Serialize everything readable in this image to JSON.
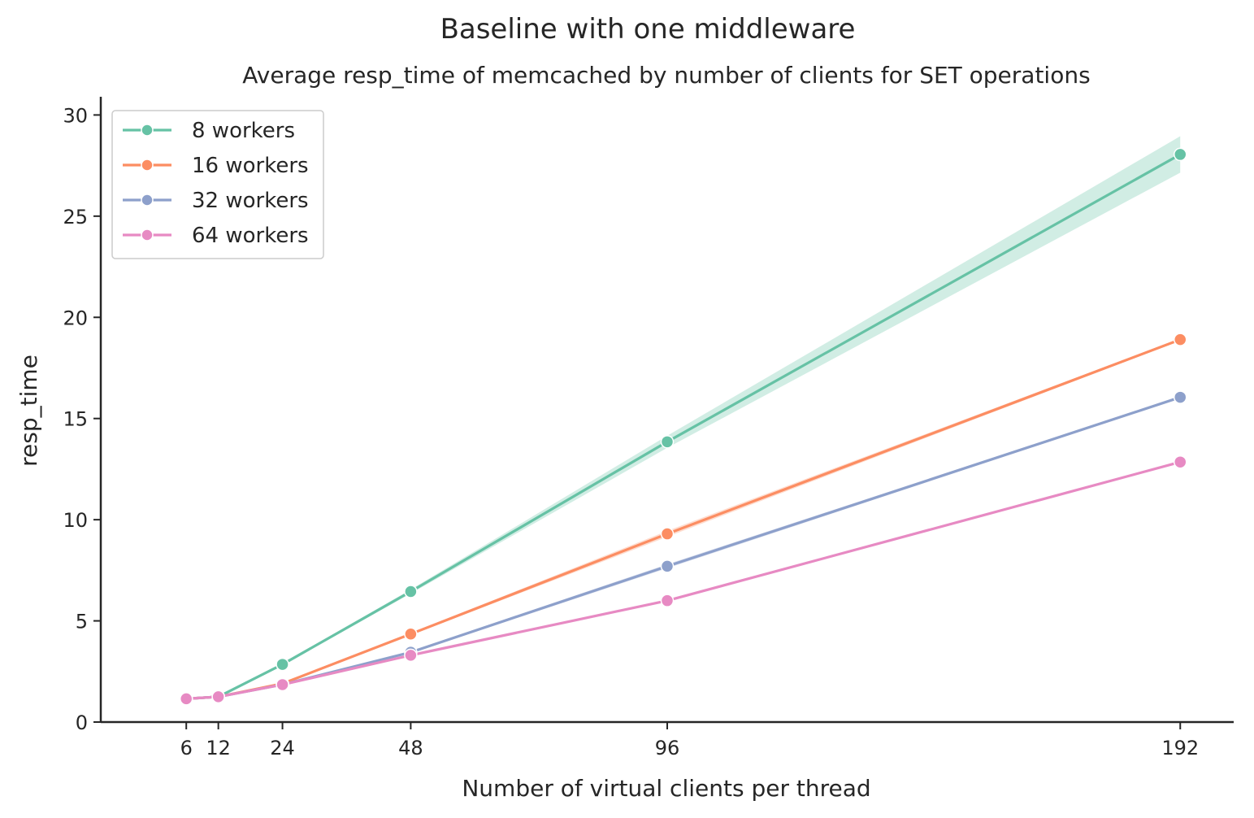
{
  "chart_data": {
    "type": "line",
    "suptitle": "Baseline with one middleware",
    "title": "Average resp_time of memcached by number of clients for SET operations",
    "xlabel": "Number of virtual clients per thread",
    "ylabel": "resp_time",
    "x": [
      6,
      12,
      24,
      48,
      96,
      192
    ],
    "xticks": [
      6,
      12,
      24,
      48,
      96,
      192
    ],
    "xtick_labels": [
      "6",
      "12",
      "24",
      "48",
      "96",
      "192"
    ],
    "yticks": [
      0,
      5,
      10,
      15,
      20,
      25,
      30
    ],
    "ytick_labels": [
      "0",
      "5",
      "10",
      "15",
      "20",
      "25",
      "30"
    ],
    "xlim": [
      -10,
      202
    ],
    "ylim": [
      0,
      30.9
    ],
    "grid": false,
    "legend_position": "top-left",
    "series": [
      {
        "name": "8 workers",
        "color": "#66c2a5",
        "values": [
          1.15,
          1.25,
          2.85,
          6.45,
          13.85,
          28.05
        ],
        "ci_low": [
          1.13,
          1.22,
          2.8,
          6.35,
          13.55,
          27.15
        ],
        "ci_high": [
          1.17,
          1.28,
          2.9,
          6.55,
          14.15,
          28.95
        ]
      },
      {
        "name": "16 workers",
        "color": "#fc8d62",
        "values": [
          1.15,
          1.25,
          1.9,
          4.35,
          9.3,
          18.9
        ],
        "ci_low": [
          1.13,
          1.23,
          1.87,
          4.3,
          9.15,
          18.85
        ],
        "ci_high": [
          1.17,
          1.27,
          1.93,
          4.4,
          9.45,
          18.95
        ]
      },
      {
        "name": "32 workers",
        "color": "#8da0cb",
        "values": [
          1.15,
          1.25,
          1.85,
          3.45,
          7.7,
          16.05
        ],
        "ci_low": [
          1.13,
          1.23,
          1.83,
          3.4,
          7.6,
          16.0
        ],
        "ci_high": [
          1.17,
          1.27,
          1.87,
          3.5,
          7.8,
          16.1
        ]
      },
      {
        "name": "64 workers",
        "color": "#e78ac3",
        "values": [
          1.15,
          1.25,
          1.85,
          3.3,
          6.0,
          12.85
        ],
        "ci_low": [
          1.13,
          1.23,
          1.83,
          3.27,
          5.95,
          12.8
        ],
        "ci_high": [
          1.17,
          1.27,
          1.87,
          3.33,
          6.05,
          12.9
        ]
      }
    ]
  }
}
